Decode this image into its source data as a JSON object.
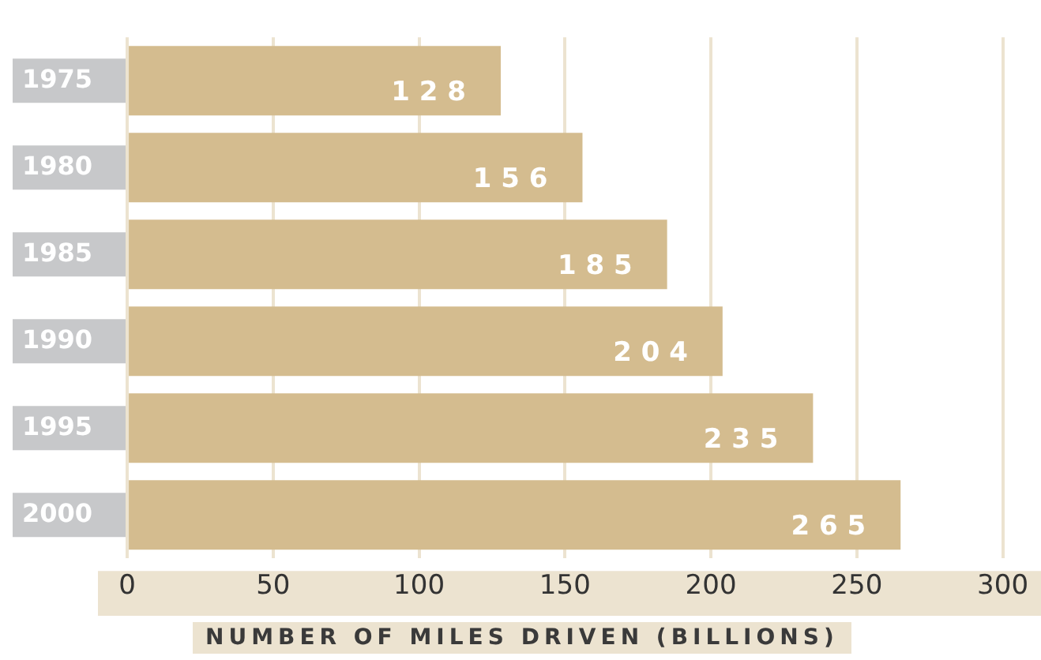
{
  "chart_data": {
    "type": "bar",
    "orientation": "horizontal",
    "xlabel": "NUMBER OF MILES DRIVEN (BILLIONS)",
    "categories": [
      "1975",
      "1980",
      "1985",
      "1990",
      "1995",
      "2000"
    ],
    "values": [
      128,
      156,
      185,
      204,
      235,
      265
    ],
    "color": "#d4bc8f",
    "xlim": [
      0,
      300
    ],
    "xticks": [
      0,
      50,
      100,
      150,
      200,
      250,
      300
    ],
    "grid": "x",
    "data_labels": true,
    "legend": false
  }
}
